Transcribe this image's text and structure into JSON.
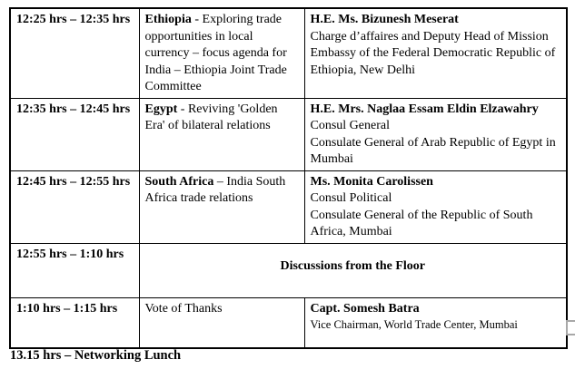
{
  "table": {
    "rows": [
      {
        "time": "12:25 hrs – 12:35 hrs",
        "topic_bold": "Ethiopia",
        "topic_rest": " - Exploring trade opportunities in local currency – focus agenda for India – Ethiopia Joint Trade Committee",
        "speaker_name": "H.E. Ms. Bizunesh Meserat",
        "speaker_lines": [
          "Charge d’affaires and Deputy Head of Mission",
          "Embassy of the Federal Democratic Republic of Ethiopia, New Delhi"
        ]
      },
      {
        "time": "12:35 hrs – 12:45 hrs",
        "topic_bold": "Egypt",
        "topic_rest": " - Reviving 'Golden Era' of bilateral relations",
        "speaker_name": "H.E. Mrs. Naglaa Essam Eldin Elzawahry",
        "speaker_lines": [
          "Consul General",
          "Consulate General of Arab Republic of Egypt in Mumbai"
        ]
      },
      {
        "time": "12:45 hrs – 12:55 hrs",
        "topic_bold": "South Africa",
        "topic_rest": " – India South Africa trade relations",
        "speaker_name": "Ms. Monita Carolissen",
        "speaker_lines": [
          "Consul Political",
          "Consulate General of the Republic of South Africa, Mumbai"
        ]
      },
      {
        "time": "12:55 hrs – 1:10 hrs",
        "merged_text": "Discussions from the Floor"
      },
      {
        "time": "1:10 hrs – 1:15 hrs",
        "topic_bold": "",
        "topic_rest": "Vote of Thanks",
        "speaker_name": "Capt. Somesh Batra",
        "speaker_lines": [
          "Vice Chairman, World Trade Center, Mumbai"
        ]
      }
    ]
  },
  "footer": {
    "text": "13.15 hrs – Networking Lunch"
  }
}
